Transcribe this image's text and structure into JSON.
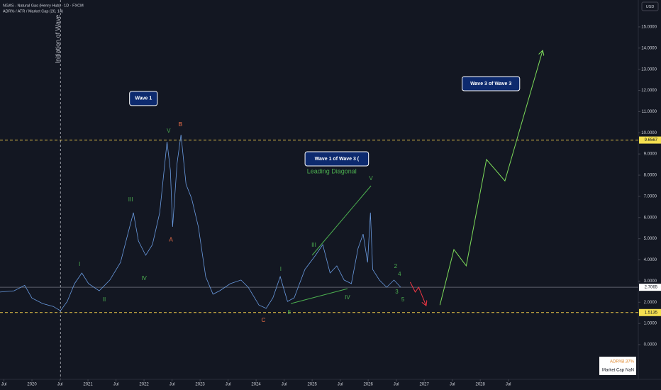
{
  "chart_data": {
    "type": "line",
    "title": "NGAS - Natural Gas (Henry Hub) · 1D · FXCM",
    "subtitle": "ADR% / ATR / Market Cap (20, 14)",
    "currency": "USD",
    "xlim": [
      2019.43,
      2030.82
    ],
    "ylim": [
      -1.64,
      16.27
    ],
    "xticks": [
      {
        "value": 2019.5,
        "label": "Jul"
      },
      2020,
      {
        "value": 2020.5,
        "label": "Jul"
      },
      2021,
      {
        "value": 2021.5,
        "label": "Jul"
      },
      2022,
      {
        "value": 2022.5,
        "label": "Jul"
      },
      2023,
      {
        "value": 2023.5,
        "label": "Jul"
      },
      2024,
      {
        "value": 2024.5,
        "label": "Jul"
      },
      2025,
      {
        "value": 2025.5,
        "label": "Jul"
      },
      2026,
      {
        "value": 2026.5,
        "label": "Jul"
      },
      2027,
      {
        "value": 2027.5,
        "label": "Jul"
      },
      2028,
      {
        "value": 2028.5,
        "label": "Jul"
      }
    ],
    "yticks": [
      {
        "value": 0,
        "label": "0.0000"
      },
      {
        "value": 1,
        "label": "1.0000"
      },
      {
        "value": 2,
        "label": "2.0000"
      },
      {
        "value": 3,
        "label": "3.0000"
      },
      {
        "value": 4,
        "label": "4.0000"
      },
      {
        "value": 5,
        "label": "5.0000"
      },
      {
        "value": 6,
        "label": "6.0000"
      },
      {
        "value": 7,
        "label": "7.0000"
      },
      {
        "value": 8,
        "label": "8.0000"
      },
      {
        "value": 9,
        "label": "9.0000"
      },
      {
        "value": 10,
        "label": "10.0000"
      },
      {
        "value": 11,
        "label": "11.0000"
      },
      {
        "value": 12,
        "label": "12.0000"
      },
      {
        "value": 13,
        "label": "13.0000"
      },
      {
        "value": 14,
        "label": "14.0000"
      },
      {
        "value": 15,
        "label": "15.0000"
      }
    ],
    "series": [
      {
        "color": "#6a9be0",
        "x": [
          2019.43,
          2019.68,
          2019.87,
          2020,
          2020.19,
          2020.38,
          2020.51,
          2020.63,
          2020.76,
          2020.89,
          2021.01,
          2021.2,
          2021.39,
          2021.58,
          2021.71,
          2021.81,
          2021.9,
          2022.03,
          2022.15,
          2022.28,
          2022.41,
          2022.47,
          2022.51,
          2022.59,
          2022.66,
          2022.75,
          2022.85,
          2022.97,
          2023.1,
          2023.23,
          2023.35,
          2023.54,
          2023.73,
          2023.86,
          2024.05,
          2024.18,
          2024.3,
          2024.43,
          2024.56,
          2024.68,
          2024.87,
          2025.06,
          2025.19,
          2025.32,
          2025.44,
          2025.57,
          2025.7,
          2025.82,
          2025.91,
          2025.99,
          2026.04,
          2026.08,
          2026.2,
          2026.33,
          2026.46,
          2026.58
        ],
        "values": [
          2.48,
          2.54,
          2.8,
          2.2,
          1.94,
          1.8,
          1.6,
          2.04,
          2.88,
          3.38,
          2.88,
          2.54,
          3.05,
          3.88,
          5.22,
          6.23,
          4.89,
          4.22,
          4.72,
          6.23,
          9.57,
          8.24,
          5.56,
          8.57,
          9.91,
          7.57,
          6.9,
          5.56,
          3.21,
          2.38,
          2.54,
          2.88,
          3.05,
          2.71,
          1.87,
          1.71,
          2.21,
          3.21,
          2.04,
          2.21,
          3.55,
          4.22,
          4.72,
          3.38,
          3.72,
          3.05,
          2.88,
          4.55,
          5.22,
          3.88,
          6.23,
          3.55,
          3.05,
          2.71,
          3.05,
          2.71
        ]
      },
      {
        "color": "#7ddc5a",
        "arrow": true,
        "x": [
          2027.28,
          2027.53,
          2027.75,
          2028.11,
          2028.44,
          2029.11
        ],
        "values": [
          1.87,
          4.49,
          3.72,
          8.74,
          7.73,
          13.86
        ]
      },
      {
        "color": "#f23645",
        "arrow": true,
        "x": [
          2026.75,
          2026.84,
          2026.9,
          2027.03
        ],
        "values": [
          2.95,
          2.48,
          2.71,
          1.87
        ]
      },
      {
        "color": "#4caf50",
        "x": [
          2024.62,
          2025.63
        ],
        "values": [
          1.94,
          2.64
        ]
      },
      {
        "color": "#4caf50",
        "x": [
          2025,
          2026.05
        ],
        "values": [
          4.22,
          7.5
        ]
      }
    ],
    "hlines": [
      {
        "value": 9.6567,
        "color": "#e8c547",
        "dashed": true
      },
      {
        "value": 1.5135,
        "color": "#e8c547",
        "dashed": true
      },
      {
        "value": 2.7065,
        "color": "#5d606b",
        "dashed": false
      }
    ],
    "vline": {
      "x": 2020.51,
      "label": "Initiation of Wave"
    },
    "annotations": [
      {
        "text": "V",
        "x": 2022.44,
        "y": 10.08,
        "color": "#4caf50"
      },
      {
        "text": "B",
        "x": 2022.65,
        "y": 10.38,
        "color": "#f7734a"
      },
      {
        "text": "A",
        "x": 2022.48,
        "y": 4.95,
        "color": "#f7734a"
      },
      {
        "text": "III",
        "x": 2021.76,
        "y": 6.83,
        "color": "#4caf50"
      },
      {
        "text": "IV",
        "x": 2022.0,
        "y": 3.11,
        "color": "#4caf50"
      },
      {
        "text": "I",
        "x": 2020.85,
        "y": 3.78,
        "color": "#4caf50"
      },
      {
        "text": "II",
        "x": 2021.29,
        "y": 2.11,
        "color": "#4caf50"
      },
      {
        "text": "C",
        "x": 2024.13,
        "y": 1.14,
        "color": "#f7734a"
      },
      {
        "text": "II",
        "x": 2024.59,
        "y": 1.51,
        "color": "#4caf50"
      },
      {
        "text": "I",
        "x": 2024.44,
        "y": 3.55,
        "color": "#4caf50"
      },
      {
        "text": "III",
        "x": 2025.03,
        "y": 4.69,
        "color": "#4caf50"
      },
      {
        "text": "IV",
        "x": 2025.63,
        "y": 2.21,
        "color": "#4caf50"
      },
      {
        "text": "V",
        "x": 2026.05,
        "y": 7.83,
        "color": "#4caf50"
      },
      {
        "text": "2",
        "x": 2026.49,
        "y": 3.68,
        "color": "#4caf50"
      },
      {
        "text": "4",
        "x": 2026.56,
        "y": 3.31,
        "color": "#4caf50"
      },
      {
        "text": "3",
        "x": 2026.51,
        "y": 2.48,
        "color": "#4caf50"
      },
      {
        "text": "5",
        "x": 2026.62,
        "y": 2.11,
        "color": "#4caf50"
      },
      {
        "text": "Leading Diagonal",
        "x": 2025.35,
        "y": 8.17,
        "color": "#4caf50"
      }
    ],
    "callouts": [
      {
        "text": "Wave 1",
        "x": 2021.99,
        "y": 11.62
      },
      {
        "text": "Wave 1 of Wave 3 (",
        "x": 2025.44,
        "y": 8.77
      },
      {
        "text": "Wave 3 of Wave 3",
        "x": 2028.19,
        "y": 12.32
      }
    ],
    "table": [
      [
        "ADR%",
        "3.37%"
      ],
      [
        "Market Cap",
        "NaN"
      ]
    ]
  }
}
